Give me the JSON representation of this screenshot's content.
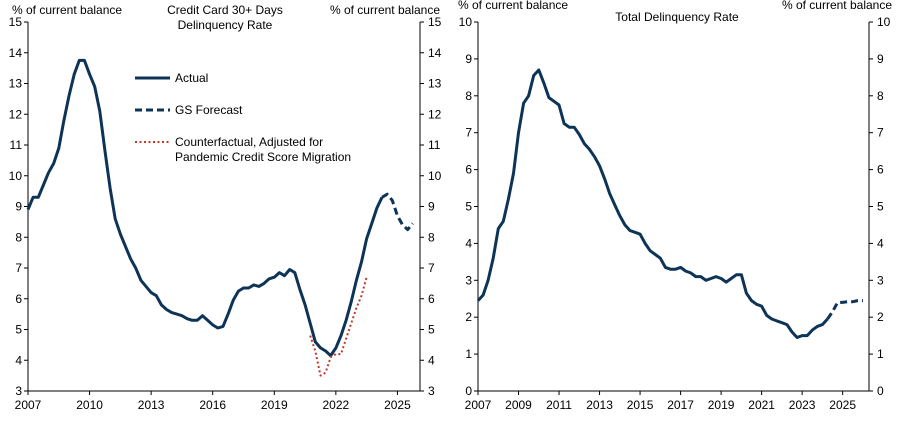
{
  "colors": {
    "actual": "#0d3457",
    "forecast": "#0d3457",
    "counterfactual": "#c0392b",
    "axis": "#000000"
  },
  "chart_data": [
    {
      "type": "line",
      "title": "Credit Card 30+ Days\nDelinquency Rate",
      "ylabel_left": "% of current  balance",
      "ylabel_right": "% of current  balance",
      "ylim": [
        3,
        15
      ],
      "yticks": [
        3,
        4,
        5,
        6,
        7,
        8,
        9,
        10,
        11,
        12,
        13,
        14,
        15
      ],
      "xlim": [
        2007,
        2026.1
      ],
      "xticks": [
        2007,
        2010,
        2013,
        2016,
        2019,
        2022,
        2025
      ],
      "grid": false,
      "legend": {
        "placement": "upper-middle",
        "entries": [
          "Actual",
          "GS Forecast",
          "Counterfactual, Adjusted for\nPandemic Credit Score Migration"
        ]
      },
      "series": [
        {
          "name": "Actual",
          "style": "solid",
          "x": [
            2007.0,
            2007.25,
            2007.5,
            2007.75,
            2008.0,
            2008.25,
            2008.5,
            2008.75,
            2009.0,
            2009.25,
            2009.5,
            2009.75,
            2010.0,
            2010.25,
            2010.5,
            2010.75,
            2011.0,
            2011.25,
            2011.5,
            2011.75,
            2012.0,
            2012.25,
            2012.5,
            2012.75,
            2013.0,
            2013.25,
            2013.5,
            2013.75,
            2014.0,
            2014.25,
            2014.5,
            2014.75,
            2015.0,
            2015.25,
            2015.5,
            2015.75,
            2016.0,
            2016.25,
            2016.5,
            2016.75,
            2017.0,
            2017.25,
            2017.5,
            2017.75,
            2018.0,
            2018.25,
            2018.5,
            2018.75,
            2019.0,
            2019.25,
            2019.5,
            2019.75,
            2020.0,
            2020.25,
            2020.5,
            2020.75,
            2021.0,
            2021.25,
            2021.5,
            2021.75,
            2022.0,
            2022.25,
            2022.5,
            2022.75,
            2023.0,
            2023.25,
            2023.5,
            2023.75,
            2024.0,
            2024.25
          ],
          "y": [
            8.9,
            9.3,
            9.3,
            9.7,
            10.1,
            10.4,
            10.9,
            11.8,
            12.6,
            13.3,
            13.75,
            13.75,
            13.3,
            12.9,
            12.1,
            10.8,
            9.6,
            8.6,
            8.1,
            7.7,
            7.3,
            7.0,
            6.6,
            6.4,
            6.2,
            6.1,
            5.8,
            5.65,
            5.55,
            5.5,
            5.45,
            5.35,
            5.3,
            5.3,
            5.45,
            5.3,
            5.15,
            5.05,
            5.1,
            5.5,
            5.95,
            6.25,
            6.35,
            6.35,
            6.45,
            6.4,
            6.5,
            6.65,
            6.7,
            6.85,
            6.75,
            6.95,
            6.85,
            6.3,
            5.8,
            5.2,
            4.6,
            4.4,
            4.3,
            4.15,
            4.4,
            4.8,
            5.3,
            5.9,
            6.6,
            7.2,
            7.95,
            8.45,
            8.95,
            9.3
          ]
        },
        {
          "name": "GS Forecast",
          "style": "dashed",
          "x": [
            2024.25,
            2024.5,
            2024.75,
            2025.0,
            2025.25,
            2025.5,
            2025.75
          ],
          "y": [
            9.3,
            9.4,
            9.2,
            8.7,
            8.4,
            8.25,
            8.45
          ]
        },
        {
          "name": "Counterfactual, Adjusted for\nPandemic Credit Score Migration",
          "style": "dotted",
          "x": [
            2020.75,
            2021.0,
            2021.25,
            2021.5,
            2021.75,
            2022.0,
            2022.25,
            2022.5,
            2022.75,
            2023.0,
            2023.25,
            2023.5
          ],
          "y": [
            4.8,
            4.3,
            3.5,
            3.6,
            4.1,
            4.2,
            4.2,
            4.7,
            5.2,
            5.7,
            6.1,
            6.7
          ]
        }
      ]
    },
    {
      "type": "line",
      "title": "Total Delinquency Rate",
      "ylabel_left": "% of current  balance",
      "ylabel_right": "% of current  balance",
      "ylim": [
        0,
        10
      ],
      "yticks": [
        0,
        1,
        2,
        3,
        4,
        5,
        6,
        7,
        8,
        9,
        10
      ],
      "xlim": [
        2007,
        2026.3
      ],
      "xticks": [
        2007,
        2009,
        2011,
        2013,
        2015,
        2017,
        2019,
        2021,
        2023,
        2025
      ],
      "grid": false,
      "series": [
        {
          "style": "solid",
          "x": [
            2007.0,
            2007.25,
            2007.5,
            2007.75,
            2008.0,
            2008.25,
            2008.5,
            2008.75,
            2009.0,
            2009.25,
            2009.5,
            2009.75,
            2010.0,
            2010.25,
            2010.5,
            2010.75,
            2011.0,
            2011.25,
            2011.5,
            2011.75,
            2012.0,
            2012.25,
            2012.5,
            2012.75,
            2013.0,
            2013.25,
            2013.5,
            2013.75,
            2014.0,
            2014.25,
            2014.5,
            2014.75,
            2015.0,
            2015.25,
            2015.5,
            2015.75,
            2016.0,
            2016.25,
            2016.5,
            2016.75,
            2017.0,
            2017.25,
            2017.5,
            2017.75,
            2018.0,
            2018.25,
            2018.5,
            2018.75,
            2019.0,
            2019.25,
            2019.5,
            2019.75,
            2020.0,
            2020.25,
            2020.5,
            2020.75,
            2021.0,
            2021.25,
            2021.5,
            2021.75,
            2022.0,
            2022.25,
            2022.5,
            2022.75,
            2023.0,
            2023.25,
            2023.5,
            2023.75,
            2024.0,
            2024.25
          ],
          "y": [
            2.45,
            2.6,
            3.0,
            3.6,
            4.4,
            4.6,
            5.2,
            5.9,
            7.0,
            7.8,
            8.0,
            8.55,
            8.7,
            8.35,
            7.95,
            7.85,
            7.75,
            7.25,
            7.15,
            7.15,
            6.95,
            6.7,
            6.55,
            6.35,
            6.1,
            5.75,
            5.35,
            5.05,
            4.75,
            4.5,
            4.35,
            4.3,
            4.25,
            4.0,
            3.8,
            3.7,
            3.6,
            3.35,
            3.3,
            3.3,
            3.35,
            3.25,
            3.2,
            3.1,
            3.1,
            3.0,
            3.05,
            3.1,
            3.05,
            2.95,
            3.05,
            3.15,
            3.15,
            2.65,
            2.45,
            2.35,
            2.3,
            2.05,
            1.95,
            1.9,
            1.85,
            1.8,
            1.6,
            1.45,
            1.5,
            1.5,
            1.65,
            1.75,
            1.8,
            1.95
          ]
        },
        {
          "style": "dashed",
          "x": [
            2024.25,
            2024.5,
            2024.75,
            2025.0,
            2025.25,
            2025.5,
            2025.75,
            2026.0
          ],
          "y": [
            1.95,
            2.15,
            2.4,
            2.4,
            2.42,
            2.42,
            2.45,
            2.45
          ]
        }
      ]
    }
  ]
}
